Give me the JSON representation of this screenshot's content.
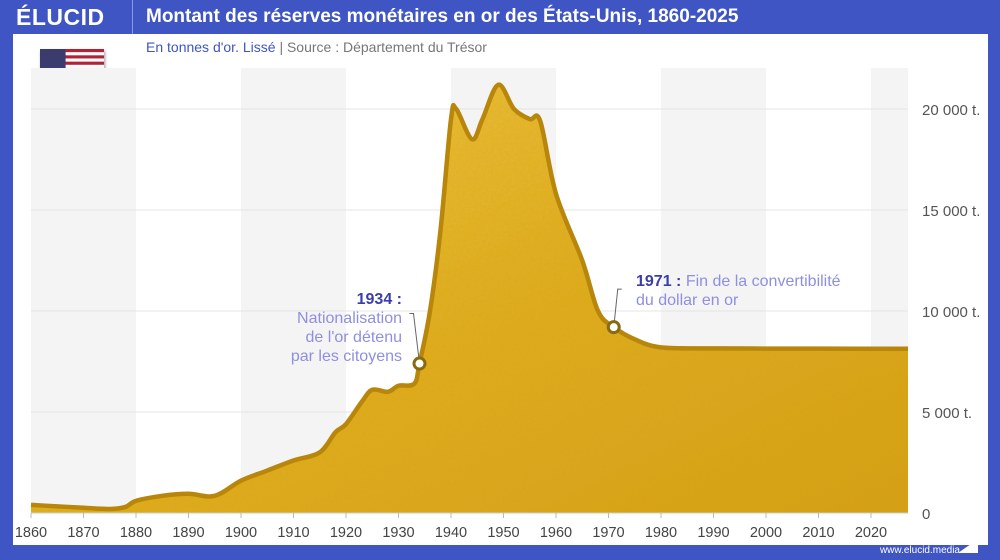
{
  "header": {
    "logo": "ÉLUCID",
    "title": "Montant des réserves monétaires en or des États-Unis, 1860-2025"
  },
  "subtitle": {
    "unit": "En tonnes d'or. Lissé",
    "separator": "|",
    "source": "Source : Département du Trésor"
  },
  "footer": {
    "url": "www.elucid.media"
  },
  "flag": "us-flag",
  "colors": {
    "frame": "#3f55c4",
    "gold": "#e8b830",
    "line": "#b8860b",
    "band": "#f4f4f4"
  },
  "annotations": [
    {
      "year_label": "1934 :",
      "lines": [
        "Nationalisation",
        "de l'or détenu",
        "par les citoyens"
      ],
      "year": 1934,
      "value": 7400
    },
    {
      "year_label": "1971 :",
      "lines": [
        "Fin de la convertibilité",
        "du dollar en or"
      ],
      "year": 1971,
      "value": 9200
    }
  ],
  "chart_data": {
    "type": "area",
    "title": "Montant des réserves monétaires en or des États-Unis, 1860-2025",
    "xlabel": "",
    "ylabel": "",
    "xlim": [
      1860,
      2025
    ],
    "ylim": [
      0,
      22000
    ],
    "x_ticks": [
      "1860",
      "1870",
      "1880",
      "1890",
      "1900",
      "1910",
      "1920",
      "1930",
      "1940",
      "1950",
      "1960",
      "1970",
      "1980",
      "1990",
      "2000",
      "2010",
      "2020"
    ],
    "y_ticks": [
      {
        "v": 0,
        "label": "0"
      },
      {
        "v": 5000,
        "label": "5 000 t."
      },
      {
        "v": 10000,
        "label": "10 000 t."
      },
      {
        "v": 15000,
        "label": "15 000 t."
      },
      {
        "v": 20000,
        "label": "20 000 t."
      }
    ],
    "grid": true,
    "x": [
      1860,
      1865,
      1870,
      1875,
      1878,
      1880,
      1885,
      1890,
      1895,
      1900,
      1905,
      1910,
      1915,
      1918,
      1920,
      1923,
      1925,
      1928,
      1930,
      1933,
      1934,
      1936,
      1938,
      1940,
      1941,
      1944,
      1946,
      1949,
      1952,
      1955,
      1957,
      1960,
      1965,
      1968,
      1971,
      1975,
      1980,
      1990,
      2000,
      2010,
      2025
    ],
    "y": [
      400,
      330,
      260,
      200,
      300,
      600,
      850,
      950,
      850,
      1600,
      2100,
      2600,
      3000,
      4000,
      4400,
      5500,
      6100,
      6000,
      6300,
      6400,
      7400,
      10000,
      14000,
      19500,
      20000,
      18500,
      19500,
      21200,
      20000,
      19500,
      19400,
      15800,
      12500,
      10000,
      9200,
      8600,
      8200,
      8150,
      8140,
      8135,
      8133
    ]
  }
}
